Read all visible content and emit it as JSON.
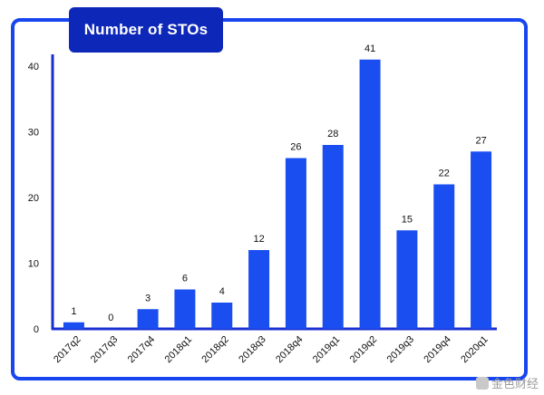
{
  "chart_data": {
    "type": "bar",
    "title": "Number of STOs",
    "categories": [
      "2017q2",
      "2017q3",
      "2017q4",
      "2018q1",
      "2018q2",
      "2018q3",
      "2018q4",
      "2019q1",
      "2019q2",
      "2019q3",
      "2019q4",
      "2020q1"
    ],
    "values": [
      1,
      0,
      3,
      6,
      4,
      12,
      26,
      28,
      41,
      15,
      22,
      27
    ],
    "yticks": [
      0,
      10,
      20,
      30,
      40
    ],
    "ylim": [
      0,
      43
    ],
    "xlabel": "",
    "ylabel": "",
    "grid": false,
    "bar_color": "#1a4ef0",
    "data_labels": true
  },
  "watermark": {
    "text": "金色财经"
  },
  "colors": {
    "frame": "#1746f0",
    "title_bg": "#0d27b8",
    "axis": "#1a2fd0"
  }
}
